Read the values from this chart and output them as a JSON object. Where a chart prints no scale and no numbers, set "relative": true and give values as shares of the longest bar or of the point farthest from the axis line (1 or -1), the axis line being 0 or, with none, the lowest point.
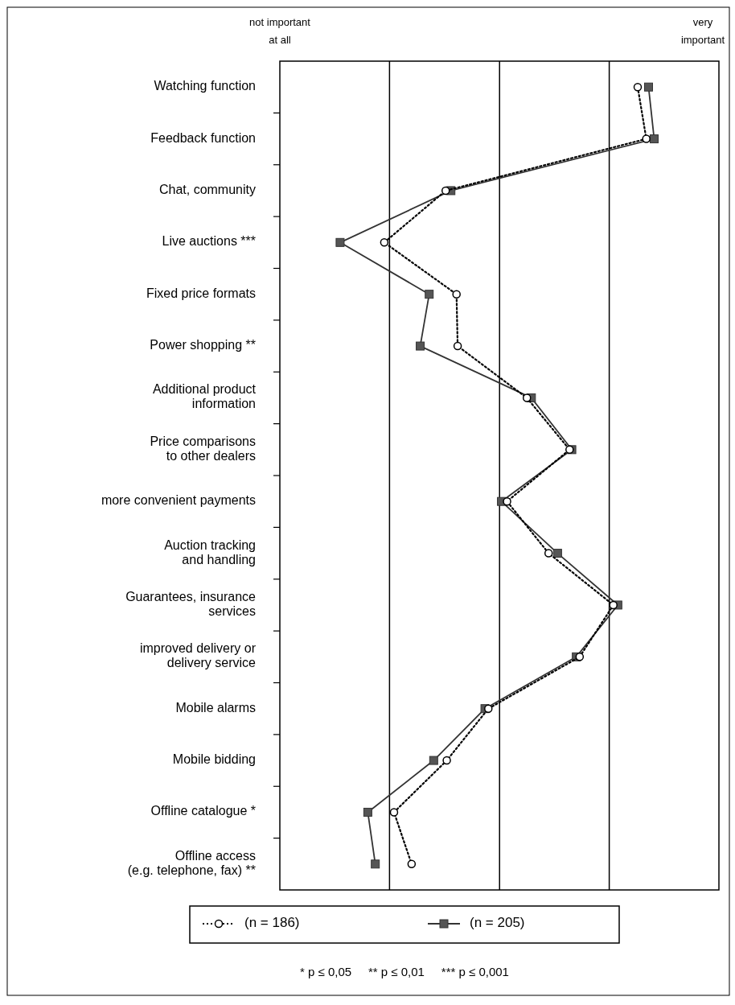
{
  "chart_data": {
    "type": "line",
    "orientation": "horizontal",
    "relative": true,
    "categories": [
      "Watching function",
      "Feedback function",
      "Chat, community",
      "Live auctions ***",
      "Fixed price formats",
      "Power shopping **",
      "Additional product\ninformation",
      "Price comparisons\nto other dealers",
      "more convenient payments",
      "Auction tracking\nand handling",
      "Guarantees, insurance\nservices",
      "improved delivery or\ndelivery service",
      "Mobile alarms",
      "Mobile bidding",
      "Offline catalogue *",
      "Offline access\n(e.g. telephone, fax) **"
    ],
    "series": [
      {
        "name": "(n = 186)",
        "color": "#000000",
        "marker": "circle",
        "line_style": "dotted",
        "values": [
          0.956,
          0.979,
          0.443,
          0.279,
          0.472,
          0.475,
          0.66,
          0.774,
          0.607,
          0.718,
          0.891,
          0.801,
          0.557,
          0.446,
          0.305,
          0.352
        ]
      },
      {
        "name": "(n = 205)",
        "color": "#333333",
        "marker": "square",
        "line_style": "solid",
        "values": [
          0.985,
          1,
          0.457,
          0.161,
          0.399,
          0.375,
          0.672,
          0.78,
          0.592,
          0.742,
          0.903,
          0.792,
          0.548,
          0.411,
          0.235,
          0.255
        ]
      }
    ],
    "ref_lines": [
      {
        "axis": "x",
        "value": 0.293,
        "color": "#000000"
      },
      {
        "axis": "x",
        "value": 0.587,
        "color": "#000000"
      },
      {
        "axis": "x",
        "value": 0.88,
        "color": "#000000"
      }
    ],
    "legend": "bottom",
    "annotations": [
      "not important\nat all",
      "very\nimportant",
      "* p ≤ 0,05     ** p ≤ 0,01     *** p ≤ 0,001"
    ]
  }
}
